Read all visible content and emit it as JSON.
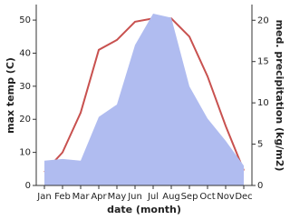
{
  "chart_data": {
    "type": "line",
    "x_label": "date (month)",
    "y_label": "max temp (C)",
    "y2_label": "med. precipitation (kg/m2)",
    "categories": [
      "Jan",
      "Feb",
      "Mar",
      "Apr",
      "May",
      "Jun",
      "Jul",
      "Aug",
      "Sep",
      "Oct",
      "Nov",
      "Dec"
    ],
    "series": [
      {
        "name": "max temp (C)",
        "type": "line",
        "color": "#c8514f",
        "values": [
          4,
          10,
          22,
          41,
          44,
          49.5,
          50.5,
          50.5,
          45,
          33,
          18,
          4.5
        ]
      },
      {
        "name": "med. precipitation (kg/m2)",
        "type": "area",
        "axis": "y2",
        "color": "#b0bcf0",
        "values": [
          3,
          3.2,
          3,
          8.3,
          9.8,
          17,
          20.8,
          20.3,
          12,
          8.1,
          5.4,
          2.4
        ]
      }
    ],
    "ylim": [
      0,
      54.7
    ],
    "yticks": [
      0,
      10,
      20,
      30,
      40,
      50
    ],
    "y2lim": [
      0,
      21.9
    ],
    "y2ticks": [
      0,
      5,
      10,
      15,
      20
    ],
    "grid": false
  }
}
